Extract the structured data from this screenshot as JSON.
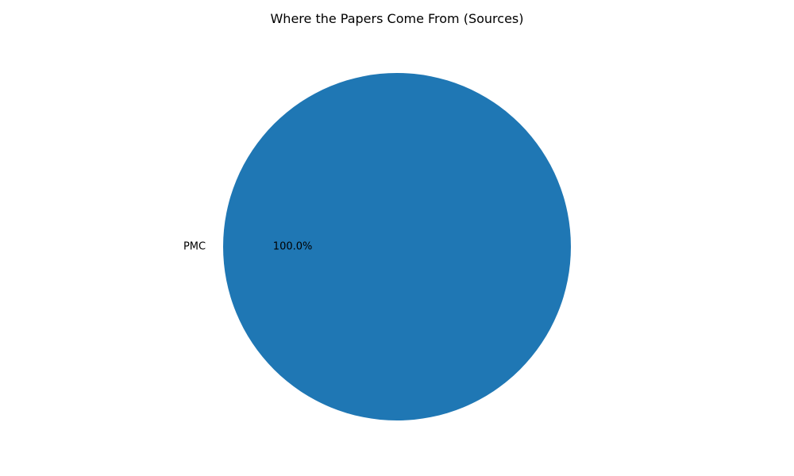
{
  "chart_data": {
    "type": "pie",
    "title": "Where the Papers Come From (Sources)",
    "categories": [
      "PMC"
    ],
    "values": [
      100.0
    ],
    "value_labels": [
      "100.0%"
    ],
    "colors": [
      "#1f77b4"
    ],
    "legend": "none",
    "grid": false
  }
}
